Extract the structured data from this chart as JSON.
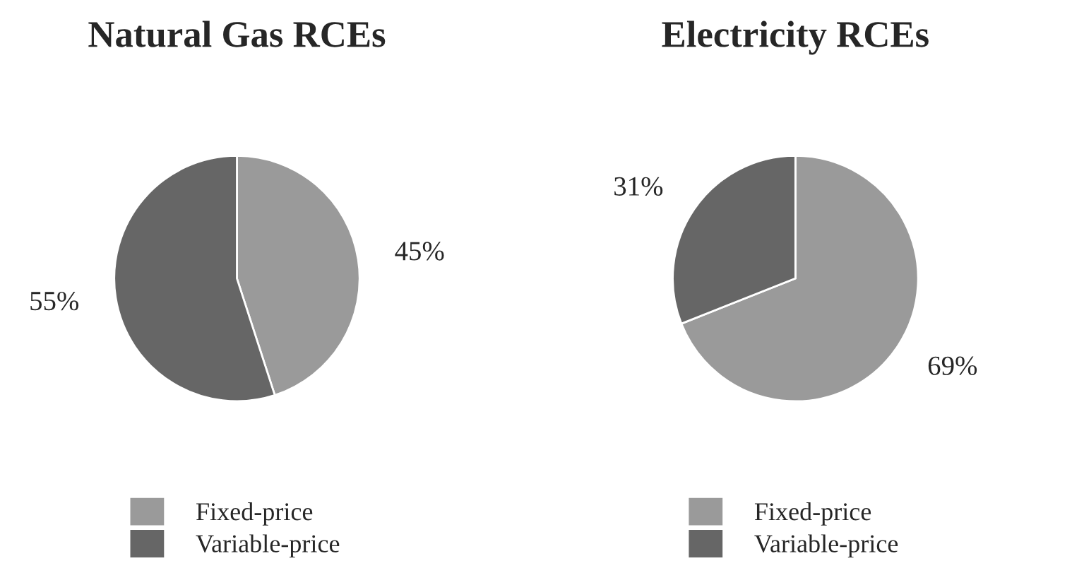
{
  "chart_data": [
    {
      "type": "pie",
      "title": "Natural Gas RCEs",
      "categories": [
        "Fixed-price",
        "Variable-price"
      ],
      "values": [
        45,
        55
      ],
      "colors": [
        "#9a9a9a",
        "#666666"
      ],
      "value_labels": [
        "45%",
        "55%"
      ],
      "legend": "bottom"
    },
    {
      "type": "pie",
      "title": "Electricity RCEs",
      "categories": [
        "Fixed-price",
        "Variable-price"
      ],
      "values": [
        69,
        31
      ],
      "colors": [
        "#9a9a9a",
        "#666666"
      ],
      "value_labels": [
        "69%",
        "31%"
      ],
      "legend": "bottom"
    }
  ]
}
